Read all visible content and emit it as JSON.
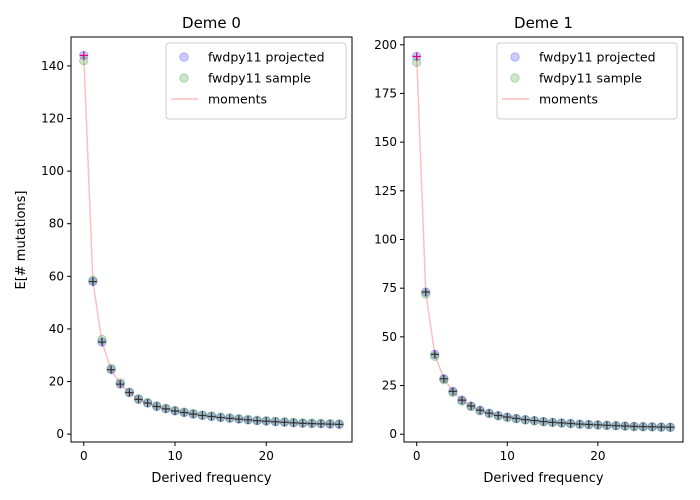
{
  "figure": {
    "shared_ylabel": "E[# mutations]",
    "legend_labels": [
      "fwdpy11 projected",
      "fwdpy11 sample",
      "moments"
    ]
  },
  "colors": {
    "projected": "#0000ff",
    "sample": "#008000",
    "moments": "#ff0000",
    "marker": "#000000"
  },
  "chart_data": [
    {
      "type": "scatter",
      "title": "Deme 0",
      "xlabel": "Derived frequency",
      "ylabel": "E[# mutations]",
      "xlim": [
        -1.4,
        29.4
      ],
      "ylim": [
        -3,
        151
      ],
      "xticks": [
        0,
        10,
        20
      ],
      "yticks": [
        0,
        20,
        40,
        60,
        80,
        100,
        120,
        140
      ],
      "legend_position": "top-right",
      "grid": false,
      "x": [
        0,
        1,
        2,
        3,
        4,
        5,
        6,
        7,
        8,
        9,
        10,
        11,
        12,
        13,
        14,
        15,
        16,
        17,
        18,
        19,
        20,
        21,
        22,
        23,
        24,
        25,
        26,
        27,
        28
      ],
      "series": [
        {
          "name": "fwdpy11 projected",
          "style": "circle",
          "values": [
            144,
            58,
            35,
            24.5,
            19,
            15.8,
            13.2,
            11.8,
            10.5,
            9.6,
            8.8,
            8.2,
            7.6,
            7.1,
            6.7,
            6.3,
            6,
            5.7,
            5.4,
            5.1,
            4.9,
            4.7,
            4.5,
            4.3,
            4.1,
            4,
            3.9,
            3.8,
            3.7
          ]
        },
        {
          "name": "fwdpy11 sample",
          "style": "circle",
          "values": [
            142,
            58.5,
            36,
            25,
            19.5,
            16,
            13.5,
            12,
            10.8,
            9.8,
            9,
            8.4,
            7.8,
            7.3,
            6.9,
            6.5,
            6.2,
            5.9,
            5.6,
            5.3,
            5.1,
            4.9,
            4.7,
            4.5,
            4.3,
            4.2,
            4.1,
            4,
            3.9
          ]
        },
        {
          "name": "moments",
          "style": "line",
          "values": [
            144,
            58,
            35,
            24.5,
            19,
            15.8,
            13.2,
            11.8,
            10.5,
            9.6,
            8.8,
            8.2,
            7.6,
            7.1,
            6.7,
            6.3,
            6,
            5.7,
            5.4,
            5.1,
            4.9,
            4.7,
            4.5,
            4.3,
            4.1,
            4,
            3.9,
            3.8,
            3.7
          ]
        }
      ]
    },
    {
      "type": "scatter",
      "title": "Deme 1",
      "xlabel": "Derived frequency",
      "ylabel": "",
      "xlim": [
        -1.4,
        29.4
      ],
      "ylim": [
        -4,
        204
      ],
      "xticks": [
        0,
        10,
        20
      ],
      "yticks": [
        0,
        25,
        50,
        75,
        100,
        125,
        150,
        175,
        200
      ],
      "legend_position": "top-right",
      "grid": false,
      "x": [
        0,
        1,
        2,
        3,
        4,
        5,
        6,
        7,
        8,
        9,
        10,
        11,
        12,
        13,
        14,
        15,
        16,
        17,
        18,
        19,
        20,
        21,
        22,
        23,
        24,
        25,
        26,
        27,
        28
      ],
      "series": [
        {
          "name": "fwdpy11 projected",
          "style": "circle",
          "values": [
            194,
            73,
            41,
            28.5,
            22,
            17.5,
            14.5,
            12.3,
            10.8,
            9.6,
            8.8,
            8.1,
            7.5,
            7,
            6.5,
            6.1,
            5.8,
            5.5,
            5.2,
            5,
            4.8,
            4.6,
            4.4,
            4.2,
            4,
            3.9,
            3.8,
            3.7,
            3.6
          ]
        },
        {
          "name": "fwdpy11 sample",
          "style": "circle",
          "values": [
            191,
            72,
            40,
            28,
            21.5,
            17,
            14.2,
            12,
            10.6,
            9.4,
            8.6,
            7.9,
            7.3,
            6.8,
            6.4,
            6,
            5.7,
            5.4,
            5.1,
            4.9,
            4.7,
            4.5,
            4.3,
            4.1,
            3.9,
            3.8,
            3.7,
            3.6,
            3.5
          ]
        },
        {
          "name": "moments",
          "style": "line",
          "values": [
            194,
            73,
            41,
            28.5,
            22,
            17.5,
            14.5,
            12.3,
            10.8,
            9.6,
            8.8,
            8.1,
            7.5,
            7,
            6.5,
            6.1,
            5.8,
            5.5,
            5.2,
            5,
            4.8,
            4.6,
            4.4,
            4.2,
            4,
            3.9,
            3.8,
            3.7,
            3.6
          ]
        }
      ]
    }
  ]
}
